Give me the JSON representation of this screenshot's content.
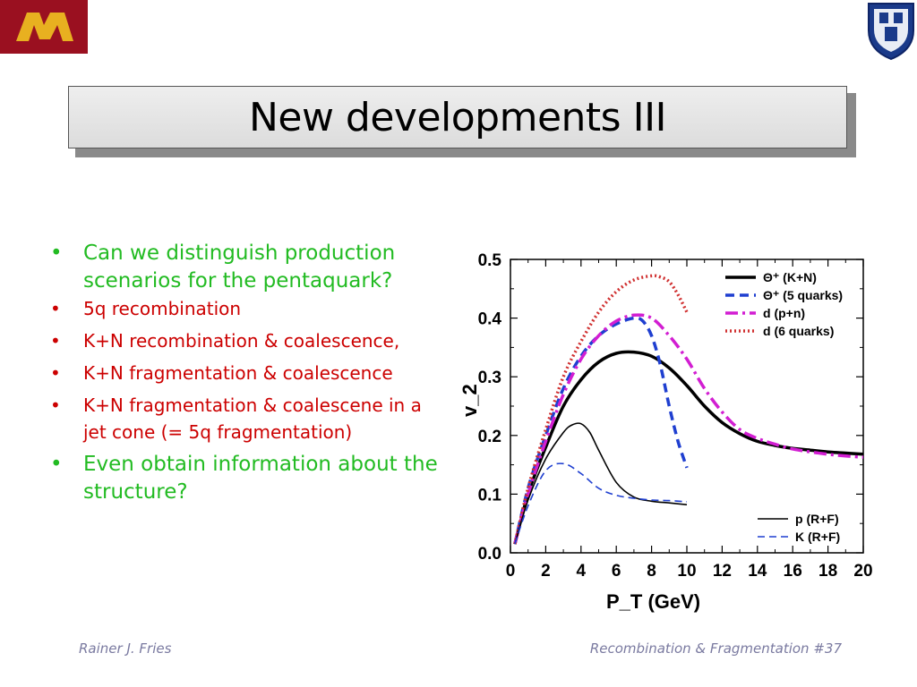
{
  "slide": {
    "title": "New developments III",
    "bullets": [
      {
        "level": 1,
        "text": "Can we distinguish production scenarios for the pentaquark?"
      },
      {
        "level": 2,
        "text": "5q recombination"
      },
      {
        "level": 2,
        "text": "K+N recombination & coalescence,"
      },
      {
        "level": 2,
        "text": "K+N fragmentation & coalescence"
      },
      {
        "level": 2,
        "text": "K+N fragmentation & coalescene in a jet cone (= 5q fragmentation)"
      },
      {
        "level": 1,
        "text": "Even obtain information about the structure?"
      }
    ],
    "footer_left": "Rainer J. Fries",
    "footer_right": "Recombination & Fragmentation  #37"
  },
  "colors": {
    "bullet_level1": "#22bb22",
    "bullet_level2": "#cc0000",
    "logo_left_bg": "#9a1020",
    "logo_left_letter": "#e8b020",
    "logo_right": "#1a3a8a"
  },
  "chart_data": {
    "type": "line",
    "xlabel": "P_T (GeV)",
    "ylabel": "v_2",
    "xlim": [
      0,
      20
    ],
    "ylim": [
      0,
      0.5
    ],
    "x_ticks": [
      "0",
      "2",
      "4",
      "6",
      "8",
      "10",
      "12",
      "14",
      "16",
      "18",
      "20"
    ],
    "y_ticks": [
      "0.0",
      "0.1",
      "0.2",
      "0.3",
      "0.4",
      "0.5"
    ],
    "legend_top": "top-right",
    "legend_bottom": "bottom-right",
    "series": [
      {
        "name": "Θ⁺ (K+N)",
        "color": "#000000",
        "style": "solid-thick",
        "x": [
          0.25,
          1,
          2,
          3,
          4,
          5,
          6,
          7,
          8,
          9,
          10,
          11,
          12,
          13,
          14,
          15,
          16,
          17,
          18,
          19,
          20
        ],
        "y": [
          0.015,
          0.1,
          0.18,
          0.25,
          0.295,
          0.325,
          0.34,
          0.342,
          0.335,
          0.315,
          0.285,
          0.25,
          0.222,
          0.203,
          0.19,
          0.183,
          0.178,
          0.175,
          0.172,
          0.17,
          0.168
        ]
      },
      {
        "name": "Θ⁺ (5 quarks)",
        "color": "#1f3fd0",
        "style": "dashed-thick",
        "x": [
          0.25,
          1,
          2,
          3,
          4,
          5,
          6,
          7,
          7.5,
          8,
          8.5,
          9,
          9.5,
          10
        ],
        "y": [
          0.015,
          0.11,
          0.2,
          0.28,
          0.335,
          0.37,
          0.39,
          0.4,
          0.395,
          0.37,
          0.32,
          0.25,
          0.19,
          0.145
        ]
      },
      {
        "name": "d (p+n)",
        "color": "#d21ed2",
        "style": "dashdot-thick",
        "x": [
          0.25,
          1,
          2,
          3,
          4,
          5,
          6,
          7,
          8,
          9,
          10,
          11,
          12,
          13,
          14,
          15,
          16,
          17,
          18,
          19,
          20
        ],
        "y": [
          0.015,
          0.1,
          0.19,
          0.27,
          0.33,
          0.37,
          0.395,
          0.405,
          0.4,
          0.37,
          0.33,
          0.28,
          0.24,
          0.21,
          0.195,
          0.185,
          0.177,
          0.172,
          0.168,
          0.165,
          0.163
        ]
      },
      {
        "name": "d (6 quarks)",
        "color": "#d03030",
        "style": "dotted-thick",
        "x": [
          0.25,
          1,
          2,
          3,
          4,
          5,
          6,
          7,
          8,
          8.5,
          9,
          9.5,
          10
        ],
        "y": [
          0.015,
          0.11,
          0.21,
          0.3,
          0.36,
          0.41,
          0.445,
          0.465,
          0.472,
          0.47,
          0.462,
          0.44,
          0.41
        ]
      },
      {
        "name": "p (R+F)",
        "color": "#000000",
        "style": "solid-thin",
        "x": [
          0.25,
          1,
          2,
          3,
          3.5,
          4,
          4.5,
          5,
          6,
          7,
          8,
          9,
          10
        ],
        "y": [
          0.015,
          0.09,
          0.16,
          0.205,
          0.218,
          0.22,
          0.205,
          0.175,
          0.12,
          0.095,
          0.088,
          0.085,
          0.082
        ]
      },
      {
        "name": "K (R+F)",
        "color": "#1f3fd0",
        "style": "dashed-thin",
        "x": [
          0.25,
          1,
          2,
          3,
          4,
          5,
          6,
          7,
          8,
          9,
          10
        ],
        "y": [
          0.015,
          0.08,
          0.14,
          0.152,
          0.135,
          0.11,
          0.098,
          0.093,
          0.09,
          0.089,
          0.087
        ]
      }
    ]
  }
}
